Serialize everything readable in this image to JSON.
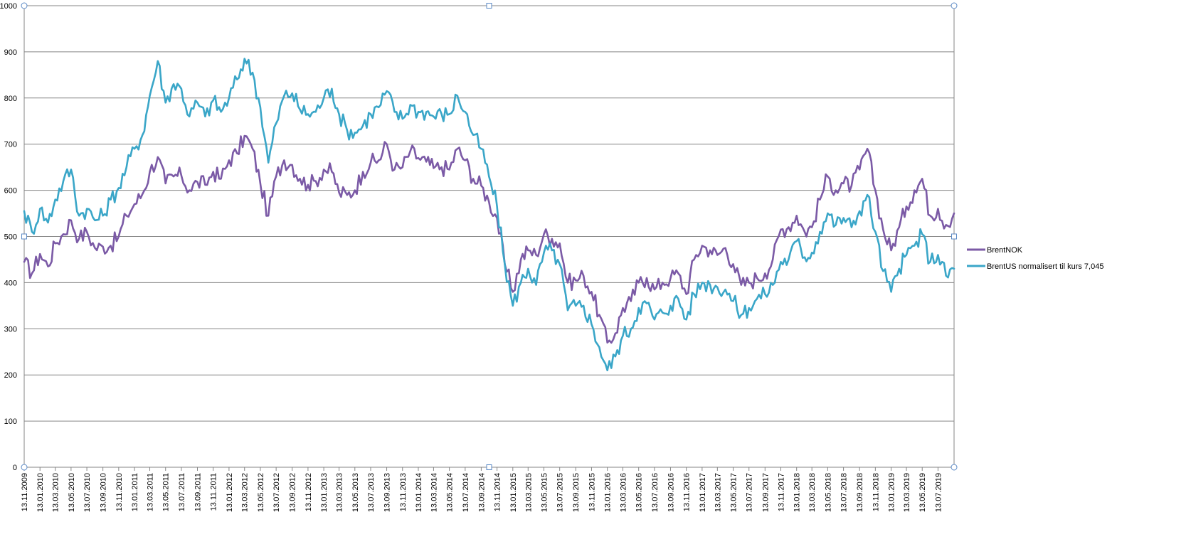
{
  "chart_data": {
    "type": "line",
    "title": "",
    "xlabel": "",
    "ylabel": "",
    "ylim": [
      0,
      1000
    ],
    "y_ticks": [
      0,
      100,
      200,
      300,
      400,
      500,
      600,
      700,
      800,
      900,
      1000
    ],
    "y_tick_labels": [
      "0",
      "100",
      "200",
      "300",
      "400",
      "500",
      "600",
      "700",
      "800",
      "900",
      "1000"
    ],
    "x_tick_labels": [
      "13.11.2009",
      "13.01.2010",
      "13.03.2010",
      "13.05.2010",
      "13.07.2010",
      "13.09.2010",
      "13.11.2010",
      "13.01.2011",
      "13.03.2011",
      "13.05.2011",
      "13.07.2011",
      "13.09.2011",
      "13.11.2011",
      "13.01.2012",
      "13.03.2012",
      "13.05.2012",
      "13.07.2012",
      "13.09.2012",
      "13.11.2012",
      "13.01.2013",
      "13.03.2013",
      "13.05.2013",
      "13.07.2013",
      "13.09.2013",
      "13.11.2013",
      "13.01.2014",
      "13.03.2014",
      "13.05.2014",
      "13.07.2014",
      "13.09.2014",
      "13.11.2014",
      "13.01.2015",
      "13.03.2015",
      "13.05.2015",
      "13.07.2015",
      "13.09.2015",
      "13.11.2015",
      "13.01.2016",
      "13.03.2016",
      "13.05.2016",
      "13.07.2016",
      "13.09.2016",
      "13.11.2016",
      "13.01.2017",
      "13.03.2017",
      "13.05.2017",
      "13.07.2017",
      "13.09.2017",
      "13.11.2017",
      "13.01.2018",
      "13.03.2018",
      "13.05.2018",
      "13.07.2018",
      "13.09.2018",
      "13.11.2018",
      "13.01.2019",
      "13.03.2019",
      "13.05.2019",
      "13.07.2019"
    ],
    "x_range": [
      "13.11.2009",
      "13.09.2019"
    ],
    "grid": true,
    "legend_position": "right",
    "series": [
      {
        "name": "BrentNOK",
        "color": "#7b5aa6",
        "points": [
          [
            "13.11.2009",
            445
          ],
          [
            "13.12.2009",
            420
          ],
          [
            "13.01.2010",
            462
          ],
          [
            "13.02.2010",
            435
          ],
          [
            "13.03.2010",
            485
          ],
          [
            "13.04.2010",
            505
          ],
          [
            "13.05.2010",
            535
          ],
          [
            "13.06.2010",
            495
          ],
          [
            "13.07.2010",
            510
          ],
          [
            "13.08.2010",
            475
          ],
          [
            "13.09.2010",
            478
          ],
          [
            "13.10.2010",
            480
          ],
          [
            "13.11.2010",
            500
          ],
          [
            "13.12.2010",
            545
          ],
          [
            "13.01.2011",
            570
          ],
          [
            "13.02.2011",
            592
          ],
          [
            "13.03.2011",
            640
          ],
          [
            "13.04.2011",
            672
          ],
          [
            "13.05.2011",
            615
          ],
          [
            "13.06.2011",
            630
          ],
          [
            "13.07.2011",
            632
          ],
          [
            "13.08.2011",
            600
          ],
          [
            "13.09.2011",
            618
          ],
          [
            "13.10.2011",
            612
          ],
          [
            "13.11.2011",
            640
          ],
          [
            "13.12.2011",
            625
          ],
          [
            "13.01.2012",
            665
          ],
          [
            "13.02.2012",
            680
          ],
          [
            "13.03.2012",
            718
          ],
          [
            "13.04.2012",
            690
          ],
          [
            "13.05.2012",
            615
          ],
          [
            "13.06.2012",
            545
          ],
          [
            "13.07.2012",
            630
          ],
          [
            "13.08.2012",
            665
          ],
          [
            "13.09.2012",
            655
          ],
          [
            "13.10.2012",
            625
          ],
          [
            "13.11.2012",
            612
          ],
          [
            "13.12.2012",
            620
          ],
          [
            "13.01.2013",
            645
          ],
          [
            "13.02.2013",
            640
          ],
          [
            "13.03.2013",
            595
          ],
          [
            "13.04.2013",
            590
          ],
          [
            "13.05.2013",
            600
          ],
          [
            "13.06.2013",
            640
          ],
          [
            "13.07.2013",
            660
          ],
          [
            "13.08.2013",
            665
          ],
          [
            "13.09.2013",
            700
          ],
          [
            "13.10.2013",
            645
          ],
          [
            "13.11.2013",
            650
          ],
          [
            "13.12.2013",
            685
          ],
          [
            "13.01.2014",
            670
          ],
          [
            "13.02.2014",
            662
          ],
          [
            "13.03.2014",
            648
          ],
          [
            "13.04.2014",
            650
          ],
          [
            "13.05.2014",
            645
          ],
          [
            "13.06.2014",
            690
          ],
          [
            "13.07.2014",
            665
          ],
          [
            "13.08.2014",
            625
          ],
          [
            "13.09.2014",
            610
          ],
          [
            "13.10.2014",
            575
          ],
          [
            "13.11.2014",
            540
          ],
          [
            "13.12.2014",
            440
          ],
          [
            "13.01.2015",
            380
          ],
          [
            "13.02.2015",
            450
          ],
          [
            "13.03.2015",
            470
          ],
          [
            "13.04.2015",
            460
          ],
          [
            "13.05.2015",
            505
          ],
          [
            "13.06.2015",
            495
          ],
          [
            "13.07.2015",
            485
          ],
          [
            "13.08.2015",
            400
          ],
          [
            "13.09.2015",
            405
          ],
          [
            "13.10.2015",
            415
          ],
          [
            "13.11.2015",
            380
          ],
          [
            "13.12.2015",
            330
          ],
          [
            "13.01.2016",
            270
          ],
          [
            "13.02.2016",
            290
          ],
          [
            "13.03.2016",
            345
          ],
          [
            "13.04.2016",
            360
          ],
          [
            "13.05.2016",
            400
          ],
          [
            "13.06.2016",
            410
          ],
          [
            "13.07.2016",
            385
          ],
          [
            "13.08.2016",
            400
          ],
          [
            "13.09.2016",
            410
          ],
          [
            "13.10.2016",
            420
          ],
          [
            "13.11.2016",
            375
          ],
          [
            "13.12.2016",
            450
          ],
          [
            "13.01.2017",
            480
          ],
          [
            "13.02.2017",
            470
          ],
          [
            "13.03.2017",
            460
          ],
          [
            "13.04.2017",
            475
          ],
          [
            "13.05.2017",
            440
          ],
          [
            "13.06.2017",
            395
          ],
          [
            "13.07.2017",
            400
          ],
          [
            "13.08.2017",
            410
          ],
          [
            "13.09.2017",
            420
          ],
          [
            "13.10.2017",
            450
          ],
          [
            "13.11.2017",
            515
          ],
          [
            "13.12.2017",
            520
          ],
          [
            "13.01.2018",
            545
          ],
          [
            "13.02.2018",
            510
          ],
          [
            "13.03.2018",
            520
          ],
          [
            "13.04.2018",
            580
          ],
          [
            "13.05.2018",
            630
          ],
          [
            "13.06.2018",
            600
          ],
          [
            "13.07.2018",
            615
          ],
          [
            "13.08.2018",
            610
          ],
          [
            "13.09.2018",
            645
          ],
          [
            "13.10.2018",
            690
          ],
          [
            "13.11.2018",
            600
          ],
          [
            "13.12.2018",
            515
          ],
          [
            "13.01.2019",
            470
          ],
          [
            "13.02.2019",
            520
          ],
          [
            "13.03.2019",
            565
          ],
          [
            "13.04.2019",
            600
          ],
          [
            "13.05.2019",
            625
          ],
          [
            "13.06.2019",
            545
          ],
          [
            "13.07.2019",
            560
          ],
          [
            "13.08.2019",
            525
          ],
          [
            "13.09.2019",
            550
          ]
        ]
      },
      {
        "name": "BrentUS normalisert til kurs 7,045",
        "color": "#3aa6c8",
        "points": [
          [
            "13.11.2009",
            555
          ],
          [
            "13.12.2009",
            510
          ],
          [
            "13.01.2010",
            560
          ],
          [
            "13.02.2010",
            530
          ],
          [
            "13.03.2010",
            580
          ],
          [
            "13.04.2010",
            620
          ],
          [
            "13.05.2010",
            645
          ],
          [
            "13.06.2010",
            545
          ],
          [
            "13.07.2010",
            560
          ],
          [
            "13.08.2010",
            535
          ],
          [
            "13.09.2010",
            545
          ],
          [
            "13.10.2010",
            580
          ],
          [
            "13.11.2010",
            605
          ],
          [
            "13.12.2010",
            650
          ],
          [
            "13.01.2011",
            690
          ],
          [
            "13.02.2011",
            720
          ],
          [
            "13.03.2011",
            805
          ],
          [
            "13.04.2011",
            880
          ],
          [
            "13.05.2011",
            790
          ],
          [
            "13.06.2011",
            830
          ],
          [
            "13.07.2011",
            820
          ],
          [
            "13.08.2011",
            760
          ],
          [
            "13.09.2011",
            790
          ],
          [
            "13.10.2011",
            760
          ],
          [
            "13.11.2011",
            795
          ],
          [
            "13.12.2011",
            770
          ],
          [
            "13.01.2012",
            800
          ],
          [
            "13.02.2012",
            840
          ],
          [
            "13.03.2012",
            885
          ],
          [
            "13.04.2012",
            855
          ],
          [
            "13.05.2012",
            780
          ],
          [
            "13.06.2012",
            660
          ],
          [
            "13.07.2012",
            745
          ],
          [
            "13.08.2012",
            805
          ],
          [
            "13.09.2012",
            810
          ],
          [
            "13.10.2012",
            775
          ],
          [
            "13.11.2012",
            765
          ],
          [
            "13.12.2012",
            770
          ],
          [
            "13.01.2013",
            800
          ],
          [
            "13.02.2013",
            820
          ],
          [
            "13.03.2013",
            765
          ],
          [
            "13.04.2013",
            730
          ],
          [
            "13.05.2013",
            725
          ],
          [
            "13.06.2013",
            740
          ],
          [
            "13.07.2013",
            765
          ],
          [
            "13.08.2013",
            780
          ],
          [
            "13.09.2013",
            815
          ],
          [
            "13.10.2013",
            770
          ],
          [
            "13.11.2013",
            755
          ],
          [
            "13.12.2013",
            785
          ],
          [
            "13.01.2014",
            770
          ],
          [
            "13.02.2014",
            770
          ],
          [
            "13.03.2014",
            760
          ],
          [
            "13.04.2014",
            765
          ],
          [
            "13.05.2014",
            765
          ],
          [
            "13.06.2014",
            805
          ],
          [
            "13.07.2014",
            770
          ],
          [
            "13.08.2014",
            720
          ],
          [
            "13.09.2014",
            690
          ],
          [
            "13.10.2014",
            630
          ],
          [
            "13.11.2014",
            565
          ],
          [
            "13.12.2014",
            440
          ],
          [
            "13.01.2015",
            350
          ],
          [
            "13.02.2015",
            400
          ],
          [
            "13.03.2015",
            430
          ],
          [
            "13.04.2015",
            395
          ],
          [
            "13.05.2015",
            465
          ],
          [
            "13.06.2015",
            470
          ],
          [
            "13.07.2015",
            440
          ],
          [
            "13.08.2015",
            340
          ],
          [
            "13.09.2015",
            350
          ],
          [
            "13.10.2015",
            350
          ],
          [
            "13.11.2015",
            310
          ],
          [
            "13.12.2015",
            260
          ],
          [
            "13.01.2016",
            210
          ],
          [
            "13.02.2016",
            240
          ],
          [
            "13.03.2016",
            285
          ],
          [
            "13.04.2016",
            300
          ],
          [
            "13.05.2016",
            345
          ],
          [
            "13.06.2016",
            355
          ],
          [
            "13.07.2016",
            320
          ],
          [
            "13.08.2016",
            335
          ],
          [
            "13.09.2016",
            350
          ],
          [
            "13.10.2016",
            365
          ],
          [
            "13.11.2016",
            320
          ],
          [
            "13.12.2016",
            375
          ],
          [
            "13.01.2017",
            400
          ],
          [
            "13.02.2017",
            395
          ],
          [
            "13.03.2017",
            390
          ],
          [
            "13.04.2017",
            385
          ],
          [
            "13.05.2017",
            360
          ],
          [
            "13.06.2017",
            330
          ],
          [
            "13.07.2017",
            345
          ],
          [
            "13.08.2017",
            365
          ],
          [
            "13.09.2017",
            375
          ],
          [
            "13.10.2017",
            395
          ],
          [
            "13.11.2017",
            445
          ],
          [
            "13.12.2017",
            450
          ],
          [
            "13.01.2018",
            490
          ],
          [
            "13.02.2018",
            455
          ],
          [
            "13.03.2018",
            465
          ],
          [
            "13.04.2018",
            510
          ],
          [
            "13.05.2018",
            550
          ],
          [
            "13.06.2018",
            525
          ],
          [
            "13.07.2018",
            540
          ],
          [
            "13.08.2018",
            520
          ],
          [
            "13.09.2018",
            555
          ],
          [
            "13.10.2018",
            590
          ],
          [
            "13.11.2018",
            510
          ],
          [
            "13.12.2018",
            425
          ],
          [
            "13.01.2019",
            380
          ],
          [
            "13.02.2019",
            430
          ],
          [
            "13.03.2019",
            460
          ],
          [
            "13.04.2019",
            480
          ],
          [
            "13.05.2019",
            505
          ],
          [
            "13.06.2019",
            445
          ],
          [
            "13.07.2019",
            460
          ],
          [
            "13.08.2019",
            415
          ],
          [
            "13.09.2019",
            430
          ]
        ]
      }
    ]
  }
}
